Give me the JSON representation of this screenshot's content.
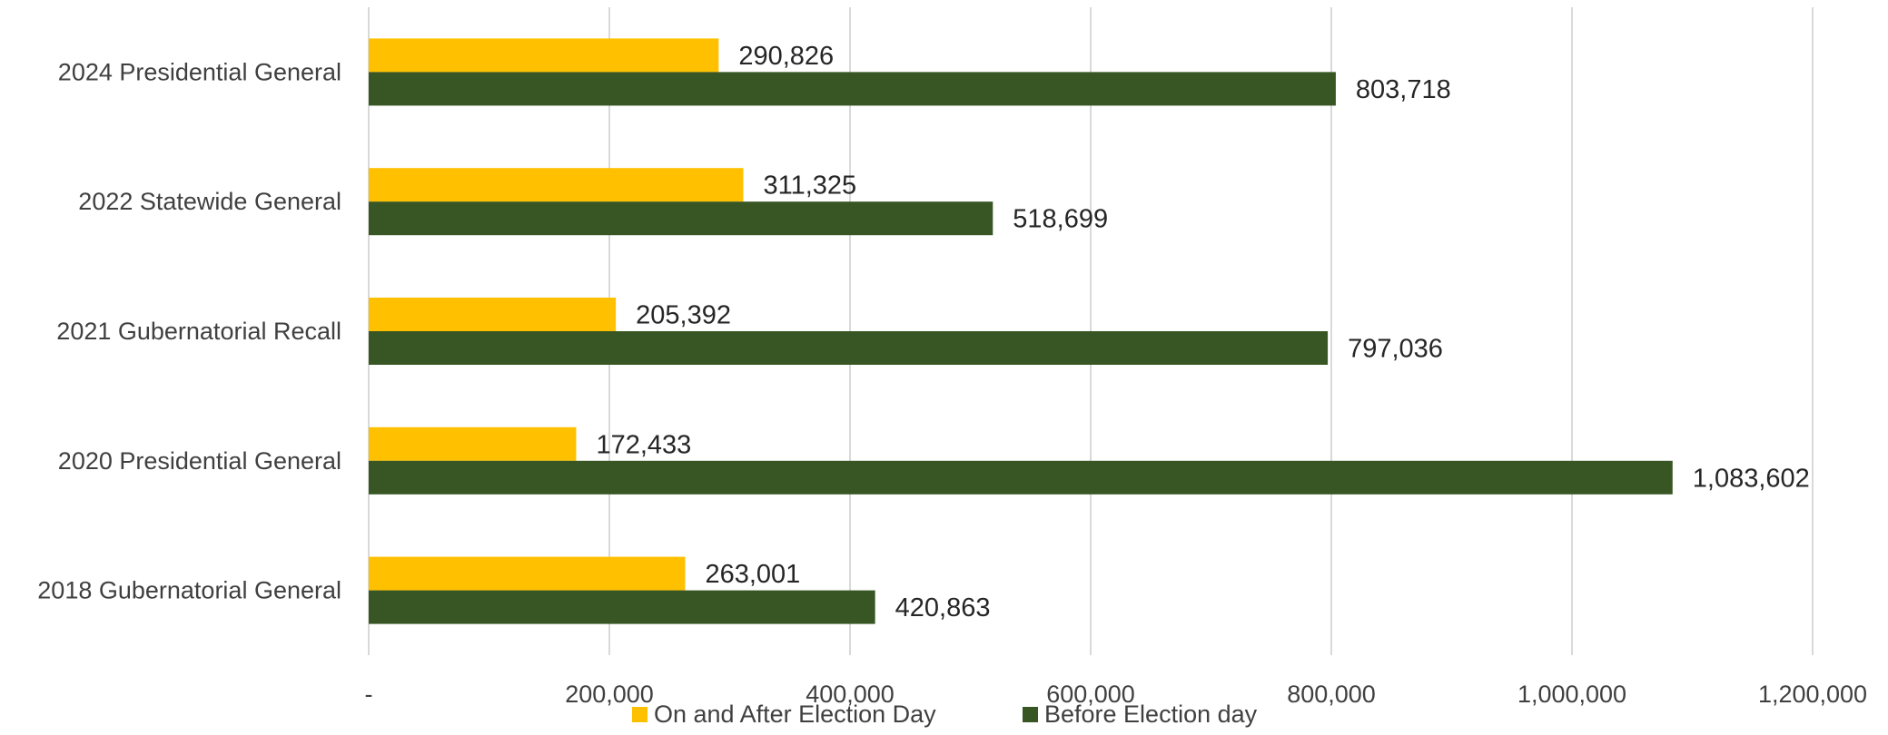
{
  "chart_data": {
    "type": "bar",
    "orientation": "horizontal",
    "categories": [
      "2024 Presidential General",
      "2022 Statewide General",
      "2021 Gubernatorial Recall",
      "2020 Presidential General",
      "2018 Gubernatorial General"
    ],
    "series": [
      {
        "name": "On and After Election Day",
        "color": "#FFC000",
        "values": [
          290826,
          311325,
          205392,
          172433,
          263001
        ],
        "labels": [
          "290,826",
          "311,325",
          "205,392",
          "172,433",
          "263,001"
        ]
      },
      {
        "name": "Before Election day",
        "color": "#375623",
        "values": [
          803718,
          518699,
          797036,
          1083602,
          420863
        ],
        "labels": [
          "803,718",
          "518,699",
          "797,036",
          "1,083,602",
          "420,863"
        ]
      }
    ],
    "xlim": [
      0,
      1200000
    ],
    "x_ticks": [
      0,
      200000,
      400000,
      600000,
      800000,
      1000000,
      1200000
    ],
    "x_tick_labels": [
      "-",
      "200,000",
      "400,000",
      "600,000",
      "800,000",
      "1,000,000",
      "1,200,000"
    ],
    "grid": "vertical",
    "legend_position": "bottom",
    "title": "",
    "xlabel": "",
    "ylabel": ""
  }
}
